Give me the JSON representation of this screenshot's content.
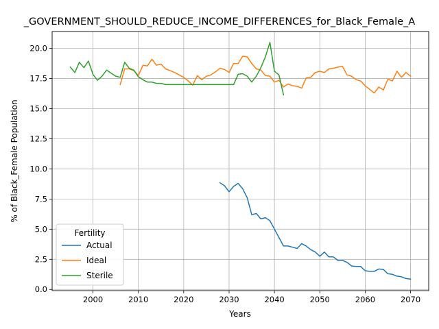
{
  "chart_data": {
    "type": "line",
    "title": "_GOVERNMENT_SHOULD_REDUCE_INCOME_DIFFERENCES_for_Black_Female_A",
    "xlabel": "Years",
    "ylabel": "% of Black_Female Population",
    "xlim": [
      1991,
      2074
    ],
    "ylim": [
      -0.1,
      21.4
    ],
    "xticks": [
      2000,
      2010,
      2020,
      2030,
      2040,
      2050,
      2060,
      2070
    ],
    "yticks": [
      0.0,
      2.5,
      5.0,
      7.5,
      10.0,
      12.5,
      15.0,
      17.5,
      20.0
    ],
    "xtick_labels": [
      "2000",
      "2010",
      "2020",
      "2030",
      "2040",
      "2050",
      "2060",
      "2070"
    ],
    "ytick_labels": [
      "0.0",
      "2.5",
      "5.0",
      "7.5",
      "10.0",
      "12.5",
      "15.0",
      "17.5",
      "20.0"
    ],
    "grid": true,
    "legend": {
      "title": "Fertility",
      "placement": "lower-left"
    },
    "series": [
      {
        "name": "Actual",
        "color": "#1f77b4",
        "x": [
          2028,
          2029,
          2030,
          2031,
          2032,
          2033,
          2034,
          2035,
          2036,
          2037,
          2038,
          2039,
          2040,
          2041,
          2042,
          2043,
          2044,
          2045,
          2046,
          2047,
          2048,
          2049,
          2050,
          2051,
          2052,
          2053,
          2054,
          2055,
          2056,
          2057,
          2058,
          2059,
          2060,
          2061,
          2062,
          2063,
          2064,
          2065,
          2066,
          2067,
          2068,
          2069,
          2070
        ],
        "y": [
          8.85,
          8.6,
          8.1,
          8.55,
          8.8,
          8.35,
          7.6,
          6.2,
          6.3,
          5.85,
          5.95,
          5.7,
          5.0,
          4.3,
          3.6,
          3.6,
          3.5,
          3.4,
          3.8,
          3.6,
          3.3,
          3.1,
          2.75,
          3.1,
          2.7,
          2.7,
          2.4,
          2.4,
          2.25,
          1.95,
          1.9,
          1.9,
          1.55,
          1.5,
          1.5,
          1.7,
          1.65,
          1.3,
          1.25,
          1.1,
          1.05,
          0.9,
          0.85
        ]
      },
      {
        "name": "Ideal",
        "color": "#ff7f0e",
        "x": [
          2006,
          2007,
          2008,
          2009,
          2010,
          2011,
          2012,
          2013,
          2014,
          2015,
          2016,
          2017,
          2018,
          2019,
          2020,
          2021,
          2022,
          2023,
          2024,
          2025,
          2026,
          2027,
          2028,
          2029,
          2030,
          2031,
          2032,
          2033,
          2034,
          2035,
          2036,
          2037,
          2038,
          2039,
          2040,
          2041,
          2042,
          2043,
          2044,
          2045,
          2046,
          2047,
          2048,
          2049,
          2050,
          2051,
          2052,
          2053,
          2054,
          2055,
          2056,
          2057,
          2058,
          2059,
          2060,
          2061,
          2062,
          2063,
          2064,
          2065,
          2066,
          2067,
          2068,
          2069,
          2070
        ],
        "y": [
          17.0,
          18.3,
          18.3,
          18.15,
          17.75,
          18.6,
          18.55,
          19.1,
          18.6,
          18.7,
          18.3,
          18.15,
          18.0,
          17.8,
          17.6,
          17.3,
          16.95,
          17.75,
          17.4,
          17.7,
          17.8,
          18.05,
          18.35,
          18.25,
          18.0,
          18.75,
          18.75,
          19.35,
          19.3,
          18.75,
          18.3,
          18.2,
          17.75,
          17.7,
          17.2,
          17.35,
          16.8,
          17.05,
          16.9,
          16.85,
          16.7,
          17.55,
          17.6,
          18.0,
          18.1,
          18.0,
          18.3,
          18.35,
          18.45,
          18.5,
          17.8,
          17.7,
          17.4,
          17.3,
          16.9,
          16.6,
          16.3,
          16.8,
          16.55,
          17.45,
          17.3,
          18.1,
          17.6,
          18.0,
          17.7
        ]
      },
      {
        "name": "Sterile",
        "color": "#2ca02c",
        "x": [
          1995,
          1996,
          1997,
          1998,
          1999,
          2000,
          2001,
          2002,
          2003,
          2004,
          2005,
          2006,
          2007,
          2008,
          2009,
          2010,
          2011,
          2012,
          2013,
          2014,
          2015,
          2016,
          2017,
          2018,
          2019,
          2020,
          2021,
          2022,
          2023,
          2024,
          2025,
          2026,
          2027,
          2028,
          2029,
          2030,
          2031,
          2032,
          2033,
          2034,
          2035,
          2036,
          2037,
          2038,
          2039,
          2040,
          2041,
          2042
        ],
        "y": [
          18.45,
          18.0,
          18.85,
          18.4,
          18.95,
          17.85,
          17.35,
          17.7,
          18.2,
          17.95,
          17.7,
          17.6,
          18.85,
          18.35,
          18.2,
          17.65,
          17.4,
          17.2,
          17.2,
          17.1,
          17.1,
          17.0,
          17.0,
          17.0,
          17.0,
          17.0,
          17.0,
          17.0,
          17.0,
          17.0,
          17.0,
          17.0,
          17.0,
          17.0,
          17.0,
          17.0,
          17.0,
          17.85,
          17.9,
          17.7,
          17.2,
          17.7,
          18.4,
          19.3,
          20.5,
          18.1,
          17.8,
          16.15
        ]
      }
    ]
  }
}
